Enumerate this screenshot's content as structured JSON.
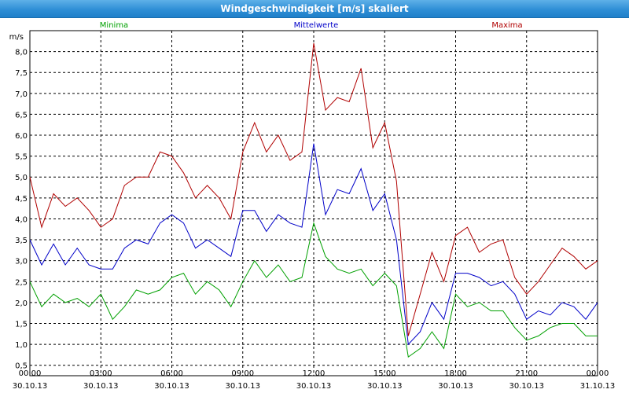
{
  "window": {
    "title": "Windgeschwindigkeit [m/s] skaliert"
  },
  "chart_data": {
    "type": "line",
    "title": "Windgeschwindigkeit [m/s] skaliert",
    "ylabel": "m/s",
    "xlabel": "",
    "ylim": [
      0.25,
      8.5
    ],
    "xlim": [
      0,
      24
    ],
    "grid": true,
    "legend_position": "top",
    "y_ticks": [
      "0,5",
      "1,0",
      "1,5",
      "2,0",
      "2,5",
      "3,0",
      "3,5",
      "4,0",
      "4,5",
      "5,0",
      "5,5",
      "6,0",
      "6,5",
      "7,0",
      "7,5",
      "8,0"
    ],
    "x_ticks": [
      {
        "time": "00:00",
        "date": "30.10.13"
      },
      {
        "time": "03:00",
        "date": "30.10.13"
      },
      {
        "time": "06:00",
        "date": "30.10.13"
      },
      {
        "time": "09:00",
        "date": "30.10.13"
      },
      {
        "time": "12:00",
        "date": "30.10.13"
      },
      {
        "time": "15:00",
        "date": "30.10.13"
      },
      {
        "time": "18:00",
        "date": "30.10.13"
      },
      {
        "time": "21:00",
        "date": "30.10.13"
      },
      {
        "time": "00:00",
        "date": "31.10.13"
      }
    ],
    "series": [
      {
        "name": "Minima",
        "color": "#00a000",
        "x": [
          0,
          0.5,
          1,
          1.5,
          2,
          2.5,
          3,
          3.5,
          4,
          4.5,
          5,
          5.5,
          6,
          6.5,
          7,
          7.5,
          8,
          8.5,
          9,
          9.5,
          10,
          10.5,
          11,
          11.5,
          12,
          12.5,
          13,
          13.5,
          14,
          14.5,
          15,
          15.5,
          16,
          16.5,
          17,
          17.5,
          18,
          18.5,
          19,
          19.5,
          20,
          20.5,
          21,
          21.5,
          22,
          22.5,
          23,
          23.5,
          24
        ],
        "values": [
          2.5,
          1.9,
          2.2,
          2.0,
          2.1,
          1.9,
          2.2,
          1.6,
          1.9,
          2.3,
          2.2,
          2.3,
          2.6,
          2.7,
          2.2,
          2.5,
          2.3,
          1.9,
          2.5,
          3.0,
          2.6,
          2.9,
          2.5,
          2.6,
          3.9,
          3.1,
          2.8,
          2.7,
          2.8,
          2.4,
          2.7,
          2.4,
          0.7,
          0.9,
          1.3,
          0.9,
          2.2,
          1.9,
          2.0,
          1.8,
          1.8,
          1.4,
          1.1,
          1.2,
          1.4,
          1.5,
          1.5,
          1.2,
          1.2
        ]
      },
      {
        "name": "Mittelwerte",
        "color": "#0000c8",
        "x": [
          0,
          0.5,
          1,
          1.5,
          2,
          2.5,
          3,
          3.5,
          4,
          4.5,
          5,
          5.5,
          6,
          6.5,
          7,
          7.5,
          8,
          8.5,
          9,
          9.5,
          10,
          10.5,
          11,
          11.5,
          12,
          12.5,
          13,
          13.5,
          14,
          14.5,
          15,
          15.5,
          16,
          16.5,
          17,
          17.5,
          18,
          18.5,
          19,
          19.5,
          20,
          20.5,
          21,
          21.5,
          22,
          22.5,
          23,
          23.5,
          24
        ],
        "values": [
          3.5,
          2.9,
          3.4,
          2.9,
          3.3,
          2.9,
          2.8,
          2.8,
          3.3,
          3.5,
          3.4,
          3.9,
          4.1,
          3.9,
          3.3,
          3.5,
          3.3,
          3.1,
          4.2,
          4.2,
          3.7,
          4.1,
          3.9,
          3.8,
          5.8,
          4.1,
          4.7,
          4.6,
          5.2,
          4.2,
          4.6,
          3.5,
          1.0,
          1.3,
          2.0,
          1.6,
          2.7,
          2.7,
          2.6,
          2.4,
          2.5,
          2.2,
          1.6,
          1.8,
          1.7,
          2.0,
          1.9,
          1.6,
          2.0
        ]
      },
      {
        "name": "Maxima",
        "color": "#b00000",
        "x": [
          0,
          0.5,
          1,
          1.5,
          2,
          2.5,
          3,
          3.5,
          4,
          4.5,
          5,
          5.5,
          6,
          6.5,
          7,
          7.5,
          8,
          8.5,
          9,
          9.5,
          10,
          10.5,
          11,
          11.5,
          12,
          12.5,
          13,
          13.5,
          14,
          14.5,
          15,
          15.5,
          16,
          16.5,
          17,
          17.5,
          18,
          18.5,
          19,
          19.5,
          20,
          20.5,
          21,
          21.5,
          22,
          22.5,
          23,
          23.5,
          24
        ],
        "values": [
          5.0,
          3.8,
          4.6,
          4.3,
          4.5,
          4.2,
          3.8,
          4.0,
          4.8,
          5.0,
          5.0,
          5.6,
          5.5,
          5.1,
          4.5,
          4.8,
          4.5,
          4.0,
          5.6,
          6.3,
          5.6,
          6.0,
          5.4,
          5.6,
          8.2,
          6.6,
          6.9,
          6.8,
          7.6,
          5.7,
          6.3,
          4.9,
          1.2,
          2.2,
          3.2,
          2.5,
          3.6,
          3.8,
          3.2,
          3.4,
          3.5,
          2.6,
          2.2,
          2.5,
          2.9,
          3.3,
          3.1,
          2.8,
          3.0
        ]
      }
    ]
  }
}
